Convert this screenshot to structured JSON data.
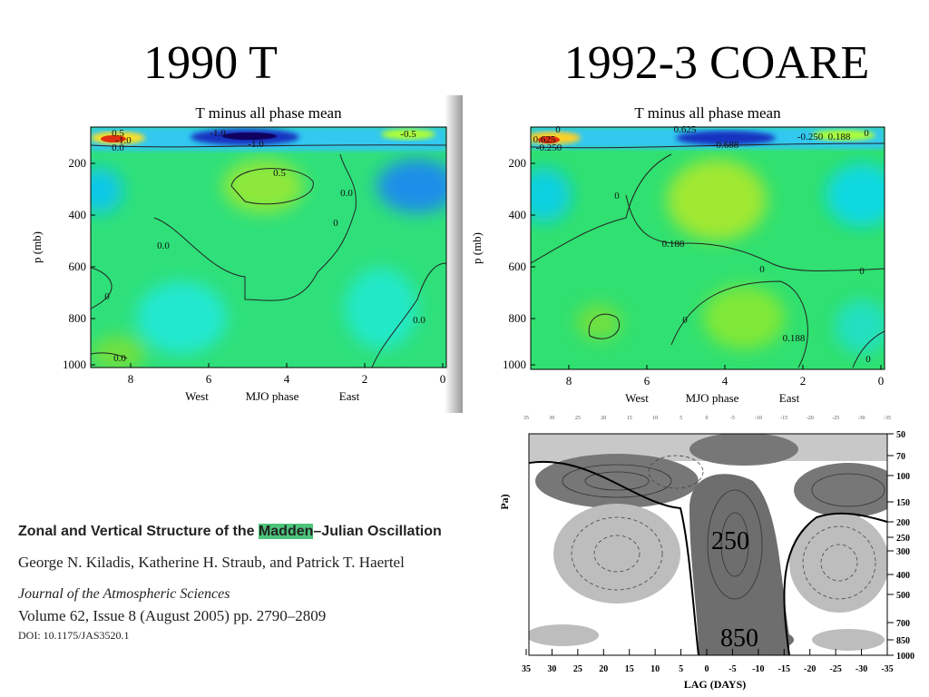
{
  "title_left": "1990 T",
  "title_right": "1992-3 COARE",
  "panels": [
    {
      "title": "T minus all phase mean",
      "ylabel": "p (mb)",
      "yticks": [
        "200",
        "400",
        "600",
        "800",
        "1000"
      ],
      "xticks": [
        "8",
        "6",
        "4",
        "2",
        "0"
      ],
      "xlabels": [
        "West",
        "MJO phase",
        "East"
      ],
      "contour_labels": [
        "0.5",
        "-1.0",
        "0.0",
        "-1.0",
        "-1.0",
        "0.5",
        "0.0",
        "0",
        "0.0",
        "0",
        "0.0",
        "0.0",
        "-0.5"
      ]
    },
    {
      "title": "T minus all phase mean",
      "ylabel": "p (mb)",
      "yticks": [
        "200",
        "400",
        "600",
        "800",
        "1000"
      ],
      "xticks": [
        "8",
        "6",
        "4",
        "2",
        "0"
      ],
      "xlabels": [
        "West",
        "MJO phase",
        "East"
      ],
      "contour_labels": [
        "0",
        "0.625",
        "-0.250",
        "0.625",
        "-0.688",
        "-0.250",
        "0.188",
        "0",
        "0",
        "0.188",
        "0",
        "0",
        "0",
        "0.188",
        "0"
      ]
    }
  ],
  "lag_plot": {
    "xlabel": "LAG (DAYS)",
    "ylabel_fragment": "Pa)",
    "xticks": [
      "35",
      "30",
      "25",
      "20",
      "15",
      "10",
      "5",
      "0",
      "-5",
      "-10",
      "-15",
      "-20",
      "-25",
      "-30",
      "-35"
    ],
    "yticks": [
      "50",
      "70",
      "100",
      "150",
      "200",
      "250",
      "300",
      "400",
      "500",
      "700",
      "850",
      "1000"
    ],
    "overlay": [
      "250",
      "850"
    ]
  },
  "citation": {
    "title_start": "Zonal and Vertical Structure of the ",
    "title_highlight": "Madden",
    "title_end": "–Julian Oscillation",
    "authors": "George N. Kiladis,  Katherine H. Straub, and Patrick T. Haertel",
    "journal": "Journal of the Atmospheric Sciences",
    "volume": "Volume 62, Issue 8 (August 2005) pp. 2790–2809",
    "doi": "DOI: 10.1175/JAS3520.1"
  }
}
